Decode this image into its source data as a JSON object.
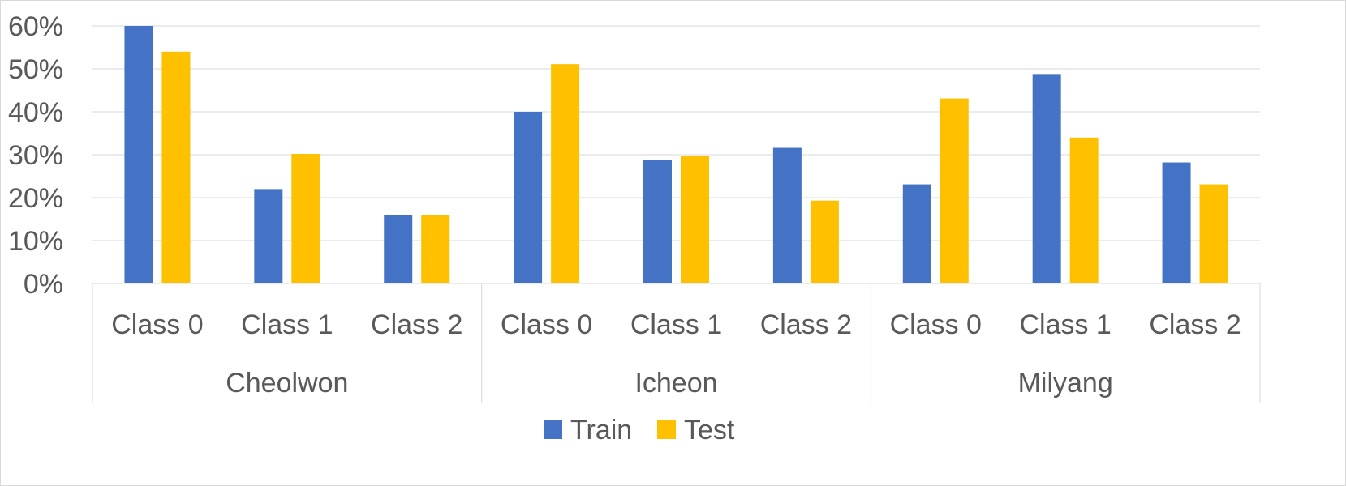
{
  "chart_data": {
    "type": "bar",
    "title": "",
    "xlabel": "",
    "ylabel": "",
    "ylim": [
      0,
      60
    ],
    "y_ticks": [
      0,
      10,
      20,
      30,
      40,
      50,
      60
    ],
    "y_tick_labels": [
      "0%",
      "10%",
      "20%",
      "30%",
      "40%",
      "50%",
      "60%"
    ],
    "grid": true,
    "legend_position": "bottom",
    "groups": [
      {
        "label": "Cheolwon",
        "categories": [
          "Class 0",
          "Class 1",
          "Class 2"
        ]
      },
      {
        "label": "Icheon",
        "categories": [
          "Class 0",
          "Class 1",
          "Class 2"
        ]
      },
      {
        "label": "Milyang",
        "categories": [
          "Class 0",
          "Class 1",
          "Class 2"
        ]
      }
    ],
    "series": [
      {
        "name": "Train",
        "color": "#4472C4",
        "values": [
          60,
          22,
          16,
          40,
          28.7,
          31.6,
          23.1,
          48.8,
          28.2
        ]
      },
      {
        "name": "Test",
        "color": "#FFC000",
        "values": [
          54,
          30.2,
          16,
          51.1,
          29.8,
          19.3,
          43.1,
          34,
          23.1
        ]
      }
    ]
  }
}
